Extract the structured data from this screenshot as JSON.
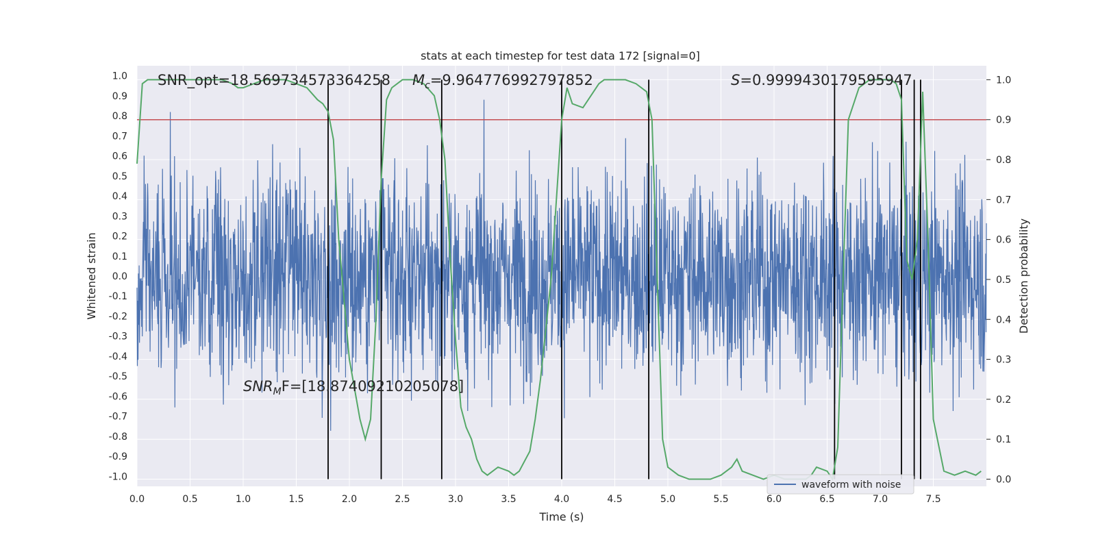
{
  "chart_data": {
    "type": "line",
    "title": "stats at each timestep for test data 172 [signal=0]",
    "xlabel": "Time (s)",
    "ylabel": "Whitened strain",
    "y2label": "Detection probability",
    "xlim": [
      0,
      8.0
    ],
    "ylim": [
      -1.05,
      1.05
    ],
    "y2lim": [
      -0.018,
      1.035
    ],
    "x_ticks": [
      "0.0",
      "0.5",
      "1.0",
      "1.5",
      "2.0",
      "2.5",
      "3.0",
      "3.5",
      "4.0",
      "4.5",
      "5.0",
      "5.5",
      "6.0",
      "6.5",
      "7.0",
      "7.5"
    ],
    "y_ticks": [
      "1.0",
      "0.9",
      "0.8",
      "0.7",
      "0.6",
      "0.5",
      "0.4",
      "0.3",
      "0.2",
      "0.1",
      "0.0",
      "-0.1",
      "-0.2",
      "-0.3",
      "-0.4",
      "-0.5",
      "-0.6",
      "-0.7",
      "-0.8",
      "-0.9",
      "-1.0"
    ],
    "y2_ticks": [
      "1.0",
      "0.9",
      "0.8",
      "0.7",
      "0.6",
      "0.5",
      "0.4",
      "0.3",
      "0.2",
      "0.1",
      "0.0"
    ],
    "grid": true,
    "legend": {
      "position": "lower-right",
      "entries": [
        "waveform with noise"
      ]
    },
    "colors": {
      "waveform": "#4c72b0",
      "probability": "#55a868",
      "threshold": "#c44e52",
      "event": "#000000",
      "background": "#eaeaf2"
    },
    "series": [
      {
        "name": "waveform with noise",
        "axis": "left",
        "style": "dense noise trace",
        "typical_range": [
          -0.4,
          0.4
        ],
        "max": 0.99,
        "min": -0.96
      },
      {
        "name": "",
        "axis": "right",
        "x": [
          0.0,
          0.05,
          0.1,
          0.2,
          0.3,
          0.4,
          0.5,
          0.6,
          0.7,
          0.8,
          0.9,
          0.95,
          1.0,
          1.1,
          1.2,
          1.3,
          1.4,
          1.5,
          1.6,
          1.7,
          1.75,
          1.8,
          1.85,
          1.9,
          2.0,
          2.1,
          2.15,
          2.2,
          2.25,
          2.3,
          2.35,
          2.4,
          2.5,
          2.6,
          2.7,
          2.8,
          2.85,
          2.9,
          2.95,
          3.0,
          3.05,
          3.1,
          3.15,
          3.2,
          3.25,
          3.3,
          3.4,
          3.5,
          3.55,
          3.6,
          3.7,
          3.75,
          3.8,
          3.9,
          4.0,
          4.05,
          4.1,
          4.2,
          4.3,
          4.35,
          4.4,
          4.5,
          4.6,
          4.7,
          4.8,
          4.85,
          4.9,
          4.95,
          5.0,
          5.1,
          5.2,
          5.3,
          5.4,
          5.5,
          5.6,
          5.65,
          5.7,
          5.8,
          5.9,
          6.0,
          6.1,
          6.2,
          6.3,
          6.35,
          6.4,
          6.5,
          6.55,
          6.6,
          6.65,
          6.7,
          6.8,
          6.9,
          7.0,
          7.1,
          7.15,
          7.2,
          7.25,
          7.3,
          7.35,
          7.4,
          7.45,
          7.5,
          7.6,
          7.7,
          7.8,
          7.9,
          7.95
        ],
        "values": [
          0.79,
          0.99,
          1.0,
          1.0,
          1.0,
          1.0,
          1.0,
          1.0,
          1.0,
          1.0,
          0.99,
          0.98,
          0.98,
          0.99,
          1.0,
          1.0,
          1.0,
          0.99,
          0.98,
          0.95,
          0.94,
          0.92,
          0.85,
          0.6,
          0.3,
          0.15,
          0.1,
          0.15,
          0.4,
          0.75,
          0.95,
          0.98,
          1.0,
          1.0,
          0.99,
          0.96,
          0.9,
          0.8,
          0.55,
          0.35,
          0.18,
          0.13,
          0.1,
          0.05,
          0.02,
          0.01,
          0.03,
          0.02,
          0.01,
          0.02,
          0.07,
          0.15,
          0.25,
          0.5,
          0.9,
          0.98,
          0.94,
          0.93,
          0.97,
          0.99,
          1.0,
          1.0,
          1.0,
          0.99,
          0.97,
          0.9,
          0.5,
          0.1,
          0.03,
          0.01,
          0.0,
          0.0,
          0.0,
          0.01,
          0.03,
          0.05,
          0.02,
          0.01,
          0.0,
          0.01,
          0.0,
          0.0,
          0.0,
          0.01,
          0.03,
          0.02,
          0.0,
          0.08,
          0.5,
          0.9,
          0.98,
          1.0,
          1.0,
          1.0,
          0.99,
          0.95,
          0.55,
          0.5,
          0.6,
          0.97,
          0.6,
          0.15,
          0.02,
          0.01,
          0.02,
          0.01,
          0.02
        ]
      },
      {
        "name": "",
        "axis": "right",
        "style": "threshold line",
        "values": [
          0.9
        ]
      }
    ],
    "event_lines_x": [
      1.8,
      2.3,
      2.87,
      4.0,
      4.82,
      6.57,
      7.2,
      7.32,
      7.38
    ],
    "annotations": [
      {
        "text": "SNR_opt=18.569734573364258"
      },
      {
        "prefix": "M",
        "sub": "c",
        "text": "=9.964776992797852"
      },
      {
        "prefix": "S",
        "text": "=0.9999430179595947"
      },
      {
        "prefix": "SNR",
        "sub": "M",
        "suffix": "F=[18.87409210205078]"
      }
    ]
  }
}
